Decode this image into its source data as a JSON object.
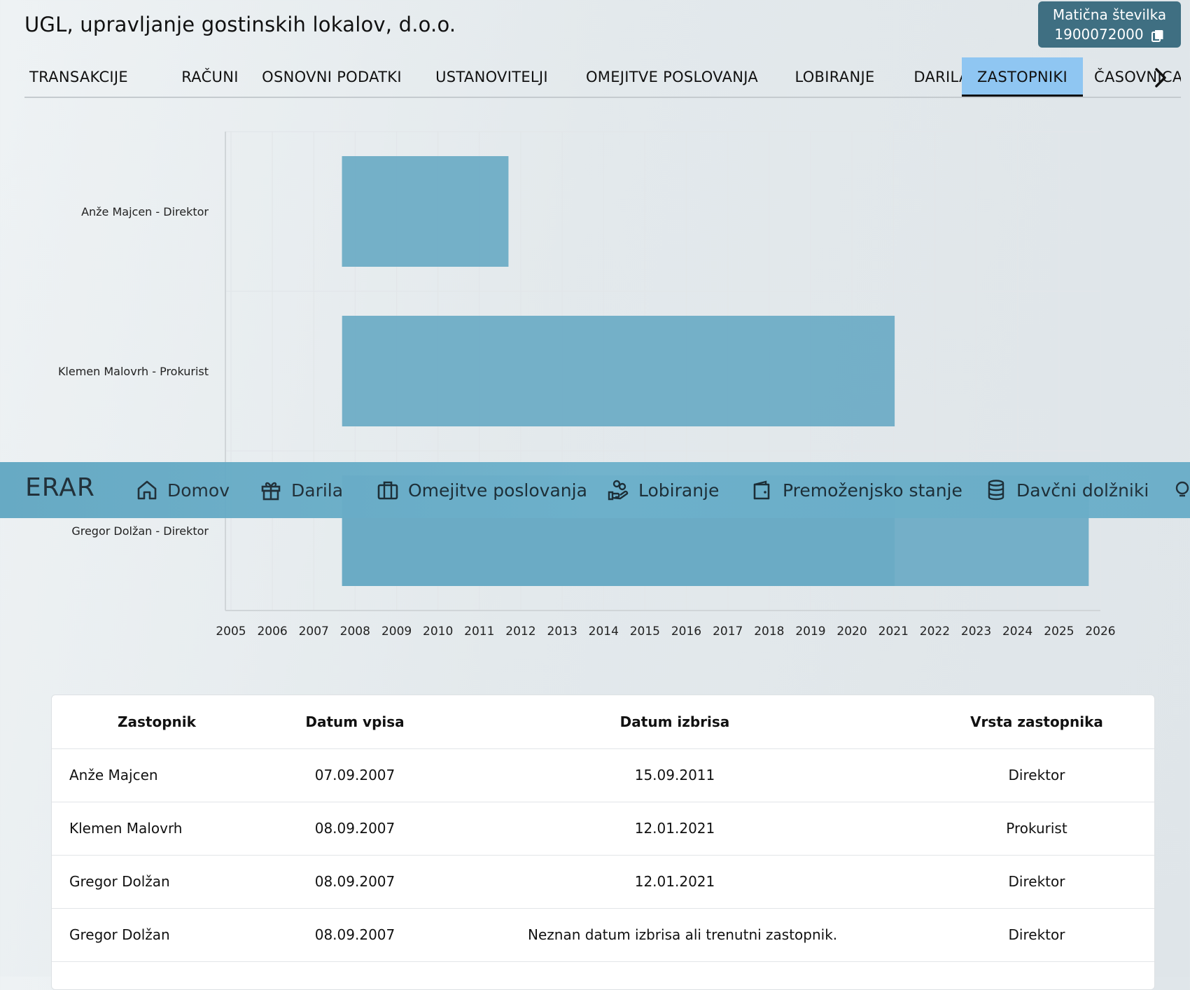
{
  "header": {
    "company_name": "UGL, upravljanje gostinskih lokalov, d.o.o.",
    "maticna_label": "Matična številka",
    "maticna_value": "1900072000"
  },
  "tabs": [
    {
      "label": "TRANSAKCIJE",
      "active": false
    },
    {
      "label": "RAČUNI",
      "active": false
    },
    {
      "label": "OSNOVNI PODATKI",
      "active": false
    },
    {
      "label": "USTANOVITELJI",
      "active": false
    },
    {
      "label": "OMEJITVE POSLOVANJA",
      "active": false
    },
    {
      "label": "LOBIRANJE",
      "active": false
    },
    {
      "label": "DARILA",
      "active": false
    },
    {
      "label": "ZASTOPNIKI",
      "active": true
    },
    {
      "label": "ČASOVNICA",
      "active": false
    }
  ],
  "nav": {
    "logo": "ERAR",
    "items": [
      {
        "label": "Domov",
        "icon": "home-icon"
      },
      {
        "label": "Darila",
        "icon": "gift-icon"
      },
      {
        "label": "Omejitve poslovanja",
        "icon": "briefcase-icon"
      },
      {
        "label": "Lobiranje",
        "icon": "hand-coins-icon"
      },
      {
        "label": "Premoženjsko stanje",
        "icon": "wallet-icon"
      },
      {
        "label": "Davčni dolžniki",
        "icon": "database-icon"
      }
    ]
  },
  "chart_data": {
    "type": "bar",
    "orientation": "horizontal-timeline",
    "x_ticks": [
      "2005",
      "2006",
      "2007",
      "2008",
      "2009",
      "2010",
      "2011",
      "2012",
      "2013",
      "2014",
      "2015",
      "2016",
      "2017",
      "2018",
      "2019",
      "2020",
      "2021",
      "2022",
      "2023",
      "2024",
      "2025",
      "2026"
    ],
    "xlim": [
      "2005-01-01",
      "2026-01-01"
    ],
    "colors": {
      "bar": "#6aaac4",
      "grid": "#e2e6e9"
    },
    "categories": [
      "Anže Majcen - Direktor",
      "Klemen Malovrh - Prokurist",
      "Gregor Dolžan - Direktor"
    ],
    "bars": [
      {
        "category": "Anže Majcen - Direktor",
        "start": "2007-09-07",
        "end": "2011-09-15"
      },
      {
        "category": "Klemen Malovrh - Prokurist",
        "start": "2007-09-08",
        "end": "2021-01-12"
      },
      {
        "category": "Gregor Dolžan - Direktor",
        "start": "2007-09-08",
        "end": "2021-01-12"
      },
      {
        "category": "Gregor Dolžan - Direktor",
        "start": "2007-09-08",
        "end": "2025-09-20"
      }
    ]
  },
  "table": {
    "headers": [
      "Zastopnik",
      "Datum vpisa",
      "Datum izbrisa",
      "Vrsta zastopnika"
    ],
    "rows": [
      [
        "Anže Majcen",
        "07.09.2007",
        "15.09.2011",
        "Direktor"
      ],
      [
        "Klemen Malovrh",
        "08.09.2007",
        "12.01.2021",
        "Prokurist"
      ],
      [
        "Gregor Dolžan",
        "08.09.2007",
        "12.01.2021",
        "Direktor"
      ],
      [
        "Gregor Dolžan",
        "08.09.2007",
        "Neznan datum izbrisa ali trenutni zastopnik.",
        "Direktor"
      ]
    ]
  }
}
